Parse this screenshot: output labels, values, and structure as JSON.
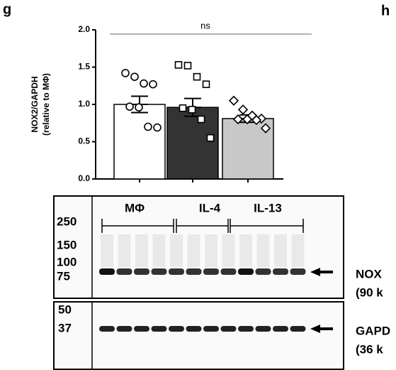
{
  "panel_labels": [
    "g",
    "h"
  ],
  "chart_data": {
    "type": "bar",
    "ylabel": [
      "NOX2/GAPDH",
      "(relative to MΦ)"
    ],
    "categories": [
      null,
      null,
      null
    ],
    "values": [
      1.0,
      0.96,
      0.81
    ],
    "errors": [
      0.11,
      0.12,
      0.05
    ],
    "colors": [
      "#ffffff",
      "#333333",
      "#c8c8c8"
    ],
    "markers": [
      "circle",
      "square",
      "diamond"
    ],
    "points": [
      [
        1.42,
        1.37,
        1.28,
        1.27,
        0.97,
        0.96,
        0.7,
        0.69
      ],
      [
        1.53,
        1.52,
        1.37,
        1.27,
        0.95,
        0.93,
        0.8,
        0.55
      ],
      [
        1.05,
        0.93,
        0.85,
        0.81,
        0.8,
        0.8,
        0.79,
        0.68
      ]
    ],
    "annotation": "ns",
    "ylim": [
      0,
      2
    ],
    "yticks": [
      {
        "value": 0,
        "label": "0.0"
      },
      0.5,
      {
        "value": 1,
        "label": "1.0"
      },
      1.5,
      {
        "value": 2,
        "label": "2.0"
      }
    ]
  },
  "blot": {
    "groups": [
      "MΦ",
      "IL-4",
      "IL-13"
    ],
    "upper_markers": [
      "250",
      "150",
      "100",
      "75"
    ],
    "lower_markers": [
      "50",
      "37"
    ],
    "upper_label": [
      "NOX",
      "(90 k"
    ],
    "lower_label": [
      "GAPD",
      "(36 k"
    ]
  }
}
